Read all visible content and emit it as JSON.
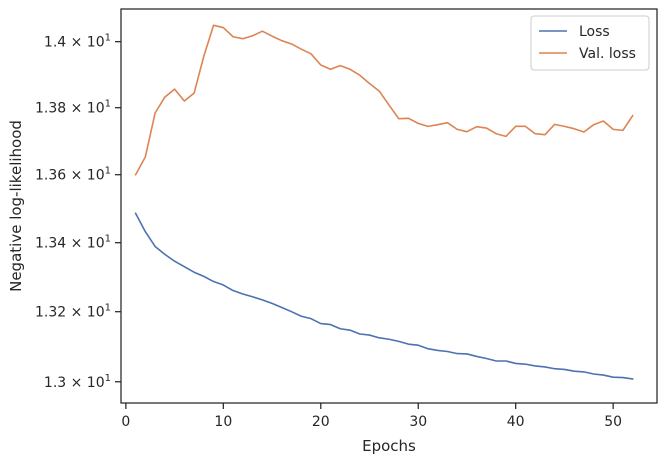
{
  "chart_data": {
    "type": "line",
    "xlabel": "Epochs",
    "ylabel": "Negative log-likelihood",
    "xlim": [
      -0.5,
      54.5
    ],
    "ylim": [
      12.94,
      14.1
    ],
    "yscale": "log",
    "grid": false,
    "legend_position": "top-right",
    "x_ticks": [
      0,
      10,
      20,
      30,
      40,
      50
    ],
    "x_tick_labels": [
      "0",
      "10",
      "20",
      "30",
      "40",
      "50"
    ],
    "y_ticks": [
      13.0,
      13.2,
      13.4,
      13.6,
      13.8,
      14.0
    ],
    "y_tick_labels": [
      {
        "mantissa": "1.3",
        "exp": "1"
      },
      {
        "mantissa": "1.32",
        "exp": "1"
      },
      {
        "mantissa": "1.34",
        "exp": "1"
      },
      {
        "mantissa": "1.36",
        "exp": "1"
      },
      {
        "mantissa": "1.38",
        "exp": "1"
      },
      {
        "mantissa": "1.4",
        "exp": "1"
      }
    ],
    "x": [
      1,
      2,
      3,
      4,
      5,
      6,
      7,
      8,
      9,
      10,
      11,
      12,
      13,
      14,
      15,
      16,
      17,
      18,
      19,
      20,
      21,
      22,
      23,
      24,
      25,
      26,
      27,
      28,
      29,
      30,
      31,
      32,
      33,
      34,
      35,
      36,
      37,
      38,
      39,
      40,
      41,
      42,
      43,
      44,
      45,
      46,
      47,
      48,
      49,
      50,
      51,
      52
    ],
    "series": [
      {
        "name": "Loss",
        "color": "#4c72b0",
        "values": [
          13.486,
          13.432,
          13.389,
          13.366,
          13.346,
          13.33,
          13.314,
          13.302,
          13.287,
          13.277,
          13.261,
          13.251,
          13.243,
          13.234,
          13.224,
          13.212,
          13.2,
          13.187,
          13.18,
          13.166,
          13.163,
          13.151,
          13.147,
          13.136,
          13.133,
          13.125,
          13.121,
          13.115,
          13.107,
          13.104,
          13.094,
          13.089,
          13.086,
          13.08,
          13.079,
          13.072,
          13.066,
          13.059,
          13.059,
          13.052,
          13.05,
          13.045,
          13.042,
          13.037,
          13.035,
          13.03,
          13.028,
          13.022,
          13.019,
          13.013,
          13.012,
          13.008
        ]
      },
      {
        "name": "Val. loss",
        "color": "#dd8452",
        "values": [
          13.6,
          13.653,
          13.784,
          13.832,
          13.856,
          13.82,
          13.844,
          13.956,
          14.05,
          14.043,
          14.015,
          14.009,
          14.018,
          14.032,
          14.017,
          14.003,
          13.993,
          13.977,
          13.963,
          13.929,
          13.916,
          13.927,
          13.916,
          13.898,
          13.873,
          13.85,
          13.808,
          13.767,
          13.768,
          13.753,
          13.744,
          13.749,
          13.755,
          13.735,
          13.728,
          13.743,
          13.739,
          13.722,
          13.714,
          13.744,
          13.744,
          13.722,
          13.719,
          13.75,
          13.744,
          13.737,
          13.727,
          13.749,
          13.76,
          13.735,
          13.732,
          13.776
        ]
      }
    ]
  }
}
